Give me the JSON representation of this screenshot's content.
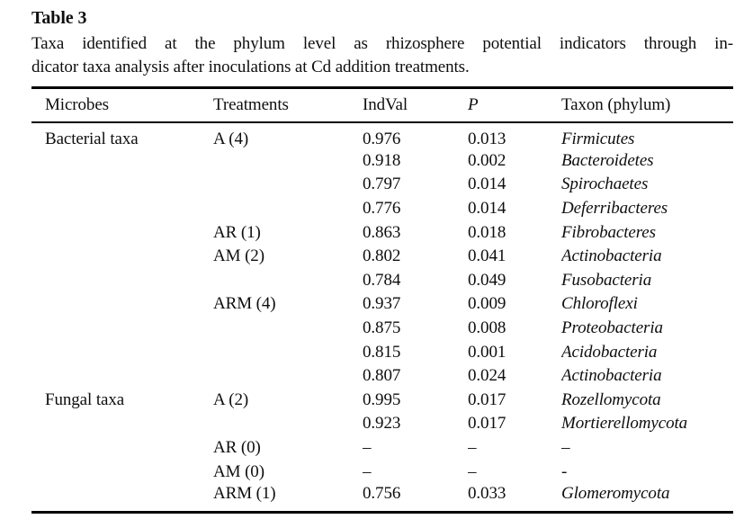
{
  "title": "Table 3",
  "caption": {
    "line1": "Taxa identified at the phylum level as rhizosphere potential indicators through in-",
    "line2": "dicator taxa analysis after inoculations at Cd addition treatments."
  },
  "table": {
    "columns": [
      "Microbes",
      "Treatments",
      "IndVal",
      "P",
      "Taxon (phylum)"
    ],
    "rows": [
      {
        "microbes": "Bacterial taxa",
        "treatments": "A (4)",
        "indval": "0.976",
        "p": "0.013",
        "taxon": "Firmicutes"
      },
      {
        "microbes": "",
        "treatments": "",
        "indval": "0.918",
        "p": "0.002",
        "taxon": "Bacteroidetes"
      },
      {
        "microbes": "",
        "treatments": "",
        "indval": "0.797",
        "p": "0.014",
        "taxon": "Spirochaetes"
      },
      {
        "microbes": "",
        "treatments": "",
        "indval": "0.776",
        "p": "0.014",
        "taxon": "Deferribacteres"
      },
      {
        "microbes": "",
        "treatments": "AR (1)",
        "indval": "0.863",
        "p": "0.018",
        "taxon": "Fibrobacteres"
      },
      {
        "microbes": "",
        "treatments": "AM (2)",
        "indval": "0.802",
        "p": "0.041",
        "taxon": "Actinobacteria"
      },
      {
        "microbes": "",
        "treatments": "",
        "indval": "0.784",
        "p": "0.049",
        "taxon": "Fusobacteria"
      },
      {
        "microbes": "",
        "treatments": "ARM (4)",
        "indval": "0.937",
        "p": "0.009",
        "taxon": "Chloroflexi"
      },
      {
        "microbes": "",
        "treatments": "",
        "indval": "0.875",
        "p": "0.008",
        "taxon": "Proteobacteria"
      },
      {
        "microbes": "",
        "treatments": "",
        "indval": "0.815",
        "p": "0.001",
        "taxon": "Acidobacteria"
      },
      {
        "microbes": "",
        "treatments": "",
        "indval": "0.807",
        "p": "0.024",
        "taxon": "Actinobacteria"
      },
      {
        "microbes": "Fungal taxa",
        "treatments": "A (2)",
        "indval": "0.995",
        "p": "0.017",
        "taxon": "Rozellomycota"
      },
      {
        "microbes": "",
        "treatments": "",
        "indval": "0.923",
        "p": "0.017",
        "taxon": "Mortierellomycota"
      },
      {
        "microbes": "",
        "treatments": "AR (0)",
        "indval": "–",
        "p": "–",
        "taxon": "–"
      },
      {
        "microbes": "",
        "treatments": "AM (0)",
        "indval": "–",
        "p": "–",
        "taxon": "-"
      },
      {
        "microbes": "",
        "treatments": "ARM (1)",
        "indval": "0.756",
        "p": "0.033",
        "taxon": "Glomeromycota"
      }
    ]
  }
}
